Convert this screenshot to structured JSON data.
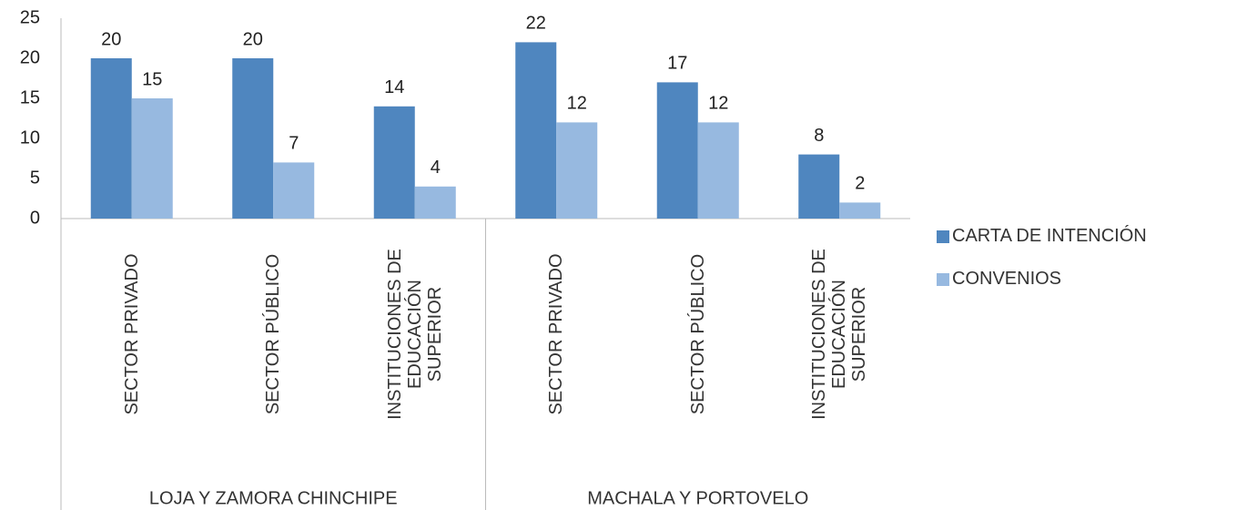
{
  "chart_data": {
    "type": "bar",
    "groups": [
      {
        "name": "LOJA Y ZAMORA CHINCHIPE",
        "categories": [
          "SECTOR PRIVADO",
          "SECTOR PÚBLICO",
          "INSTITUCIONES DE EDUCACIÓN SUPERIOR"
        ]
      },
      {
        "name": "MACHALA Y PORTOVELO",
        "categories": [
          "SECTOR PRIVADO",
          "SECTOR PÚBLICO",
          "INSTITUCIONES DE EDUCACIÓN SUPERIOR"
        ]
      }
    ],
    "series": [
      {
        "name": "CARTA DE INTENCIÓN",
        "color": "#4f86bf",
        "values": [
          20,
          20,
          14,
          22,
          17,
          8
        ]
      },
      {
        "name": "CONVENIOS",
        "color": "#97b9e0",
        "values": [
          15,
          7,
          4,
          12,
          12,
          2
        ]
      }
    ],
    "ylim": [
      0,
      25
    ],
    "yticks": [
      0,
      5,
      10,
      15,
      20,
      25
    ],
    "grid": false,
    "legend": "right"
  }
}
